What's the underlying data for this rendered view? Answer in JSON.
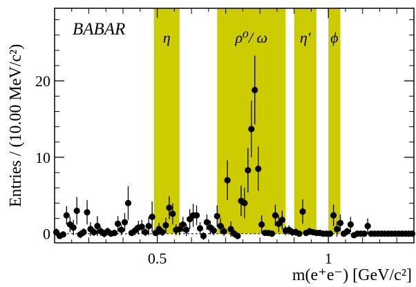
{
  "chart_data": {
    "type": "scatter",
    "title": "",
    "experiment_label": "BABAR",
    "xlabel": "m(e⁺e⁻) [GeV/c²]",
    "ylabel": "Entries / (10.00 MeV/c²)",
    "xlim": [
      0.2,
      1.25
    ],
    "ylim": [
      -1.2,
      29.5
    ],
    "x_ticks": [
      {
        "value": 0.5,
        "label": "0.5"
      },
      {
        "value": 1.0,
        "label": "1"
      }
    ],
    "y_ticks": [
      {
        "value": 0,
        "label": "0"
      },
      {
        "value": 10,
        "label": "10"
      },
      {
        "value": 20,
        "label": "20"
      }
    ],
    "band_color": "#cccc00",
    "marker_color": "#000000",
    "bands": [
      {
        "name": "η",
        "x0": 0.49,
        "x1": 0.565
      },
      {
        "name": "ρ⁰/ ω",
        "x0": 0.675,
        "x1": 0.875
      },
      {
        "name": "η′",
        "x0": 0.9,
        "x1": 0.965
      },
      {
        "name": "ϕ",
        "x0": 1.0,
        "x1": 1.035
      }
    ],
    "series": [
      {
        "points": [
          {
            "x": 0.205,
            "y": 0.2,
            "err": 0.5
          },
          {
            "x": 0.215,
            "y": -0.3,
            "err": 0.4
          },
          {
            "x": 0.225,
            "y": -0.1,
            "err": 0.4
          },
          {
            "x": 0.235,
            "y": 2.4,
            "err": 1.2
          },
          {
            "x": 0.245,
            "y": 1.2,
            "err": 1.0
          },
          {
            "x": 0.255,
            "y": 0.8,
            "err": 1.0
          },
          {
            "x": 0.265,
            "y": 3.0,
            "err": 1.8
          },
          {
            "x": 0.275,
            "y": -0.1,
            "err": 0.5
          },
          {
            "x": 0.285,
            "y": 0.2,
            "err": 0.5
          },
          {
            "x": 0.295,
            "y": 2.8,
            "err": 1.6
          },
          {
            "x": 0.305,
            "y": 0.6,
            "err": 0.9
          },
          {
            "x": 0.315,
            "y": 0.2,
            "err": 0.5
          },
          {
            "x": 0.325,
            "y": 1.0,
            "err": 1.3
          },
          {
            "x": 0.335,
            "y": 0.3,
            "err": 0.6
          },
          {
            "x": 0.345,
            "y": 0.0,
            "err": 0.5
          },
          {
            "x": 0.355,
            "y": 0.3,
            "err": 0.5
          },
          {
            "x": 0.365,
            "y": 0.0,
            "err": 0.4
          },
          {
            "x": 0.375,
            "y": 0.1,
            "err": 0.4
          },
          {
            "x": 0.385,
            "y": 1.3,
            "err": 1.0
          },
          {
            "x": 0.395,
            "y": 0.5,
            "err": 0.7
          },
          {
            "x": 0.405,
            "y": 1.5,
            "err": 1.2
          },
          {
            "x": 0.415,
            "y": 4.0,
            "err": 2.2
          },
          {
            "x": 0.425,
            "y": 0.1,
            "err": 0.4
          },
          {
            "x": 0.435,
            "y": 0.4,
            "err": 0.6
          },
          {
            "x": 0.445,
            "y": 0.8,
            "err": 0.9
          },
          {
            "x": 0.455,
            "y": 0.9,
            "err": 0.9
          },
          {
            "x": 0.465,
            "y": 0.2,
            "err": 0.5
          },
          {
            "x": 0.475,
            "y": 1.0,
            "err": 1.2
          },
          {
            "x": 0.485,
            "y": 2.2,
            "err": 2.0
          },
          {
            "x": 0.495,
            "y": 0.1,
            "err": 0.4
          },
          {
            "x": 0.505,
            "y": 0.6,
            "err": 0.8
          },
          {
            "x": 0.515,
            "y": 0.2,
            "err": 0.5
          },
          {
            "x": 0.525,
            "y": 1.1,
            "err": 1.0
          },
          {
            "x": 0.535,
            "y": 3.4,
            "err": 1.5
          },
          {
            "x": 0.545,
            "y": 2.6,
            "err": 1.4
          },
          {
            "x": 0.555,
            "y": 0.5,
            "err": 0.7
          },
          {
            "x": 0.565,
            "y": 0.6,
            "err": 0.8
          },
          {
            "x": 0.575,
            "y": 1.2,
            "err": 1.0
          },
          {
            "x": 0.585,
            "y": 0.5,
            "err": 0.8
          },
          {
            "x": 0.595,
            "y": 1.9,
            "err": 1.3
          },
          {
            "x": 0.605,
            "y": 2.4,
            "err": 1.5
          },
          {
            "x": 0.615,
            "y": 2.4,
            "err": 1.3
          },
          {
            "x": 0.625,
            "y": 0.7,
            "err": 0.8
          },
          {
            "x": 0.635,
            "y": -0.3,
            "err": 0.5
          },
          {
            "x": 0.645,
            "y": 1.5,
            "err": 1.0
          },
          {
            "x": 0.655,
            "y": 0.8,
            "err": 0.9
          },
          {
            "x": 0.665,
            "y": 0.4,
            "err": 0.6
          },
          {
            "x": 0.675,
            "y": 2.3,
            "err": 1.4
          },
          {
            "x": 0.685,
            "y": 1.0,
            "err": 1.0
          },
          {
            "x": 0.695,
            "y": 0.3,
            "err": 0.6
          },
          {
            "x": 0.705,
            "y": 7.0,
            "err": 2.6
          },
          {
            "x": 0.715,
            "y": 0.6,
            "err": 1.0
          },
          {
            "x": 0.725,
            "y": 0.0,
            "err": 0.5
          },
          {
            "x": 0.735,
            "y": -0.3,
            "err": 0.4
          },
          {
            "x": 0.745,
            "y": 4.3,
            "err": 2.0
          },
          {
            "x": 0.755,
            "y": 4.0,
            "err": 2.0
          },
          {
            "x": 0.765,
            "y": 8.3,
            "err": 2.9
          },
          {
            "x": 0.775,
            "y": 13.7,
            "err": 3.7
          },
          {
            "x": 0.785,
            "y": 18.8,
            "err": 4.5
          },
          {
            "x": 0.795,
            "y": 8.5,
            "err": 2.9
          },
          {
            "x": 0.805,
            "y": 1.2,
            "err": 1.2
          },
          {
            "x": 0.815,
            "y": 0.1,
            "err": 0.4
          },
          {
            "x": 0.825,
            "y": 0.1,
            "err": 0.4
          },
          {
            "x": 0.835,
            "y": 0.0,
            "err": 0.4
          },
          {
            "x": 0.845,
            "y": 2.4,
            "err": 1.4
          },
          {
            "x": 0.855,
            "y": 1.3,
            "err": 1.1
          },
          {
            "x": 0.865,
            "y": 1.8,
            "err": 1.2
          },
          {
            "x": 0.875,
            "y": 0.4,
            "err": 0.6
          },
          {
            "x": 0.885,
            "y": 0.5,
            "err": 0.6
          },
          {
            "x": 0.895,
            "y": 0.2,
            "err": 0.5
          },
          {
            "x": 0.905,
            "y": 0.2,
            "err": 0.5
          },
          {
            "x": 0.915,
            "y": 0.0,
            "err": 0.4
          },
          {
            "x": 0.925,
            "y": 2.9,
            "err": 1.6
          },
          {
            "x": 0.935,
            "y": 0.1,
            "err": 0.4
          },
          {
            "x": 0.945,
            "y": 0.3,
            "err": 0.5
          },
          {
            "x": 0.955,
            "y": 0.2,
            "err": 0.4
          },
          {
            "x": 0.965,
            "y": 0.1,
            "err": 0.4
          },
          {
            "x": 0.975,
            "y": 0.1,
            "err": 0.4
          },
          {
            "x": 0.985,
            "y": 0.0,
            "err": 0.4
          },
          {
            "x": 0.995,
            "y": 0.0,
            "err": 0.4
          },
          {
            "x": 1.005,
            "y": 0.0,
            "err": 0.4
          },
          {
            "x": 1.015,
            "y": 2.4,
            "err": 1.4
          },
          {
            "x": 1.025,
            "y": 0.6,
            "err": 1.0
          },
          {
            "x": 1.035,
            "y": 1.4,
            "err": 1.1
          },
          {
            "x": 1.045,
            "y": 0.0,
            "err": 0.4
          },
          {
            "x": 1.055,
            "y": 0.3,
            "err": 0.5
          },
          {
            "x": 1.065,
            "y": 1.2,
            "err": 1.0
          },
          {
            "x": 1.075,
            "y": -0.2,
            "err": 0.4
          },
          {
            "x": 1.085,
            "y": 0.0,
            "err": 0.4
          },
          {
            "x": 1.095,
            "y": 0.0,
            "err": 0.4
          },
          {
            "x": 1.105,
            "y": 0.0,
            "err": 0.4
          },
          {
            "x": 1.115,
            "y": 1.0,
            "err": 1.0
          },
          {
            "x": 1.125,
            "y": 0.0,
            "err": 0.4
          },
          {
            "x": 1.135,
            "y": 0.0,
            "err": 0.4
          },
          {
            "x": 1.145,
            "y": 0.0,
            "err": 0.4
          },
          {
            "x": 1.155,
            "y": 0.0,
            "err": 0.4
          },
          {
            "x": 1.165,
            "y": 0.0,
            "err": 0.4
          },
          {
            "x": 1.175,
            "y": 0.0,
            "err": 0.4
          },
          {
            "x": 1.185,
            "y": 0.0,
            "err": 0.4
          },
          {
            "x": 1.195,
            "y": 0.0,
            "err": 0.4
          },
          {
            "x": 1.205,
            "y": 0.0,
            "err": 0.4
          },
          {
            "x": 1.215,
            "y": 0.0,
            "err": 0.4
          },
          {
            "x": 1.225,
            "y": 0.0,
            "err": 0.4
          },
          {
            "x": 1.235,
            "y": 0.0,
            "err": 0.4
          },
          {
            "x": 1.245,
            "y": 0.0,
            "err": 0.4
          }
        ]
      }
    ]
  }
}
